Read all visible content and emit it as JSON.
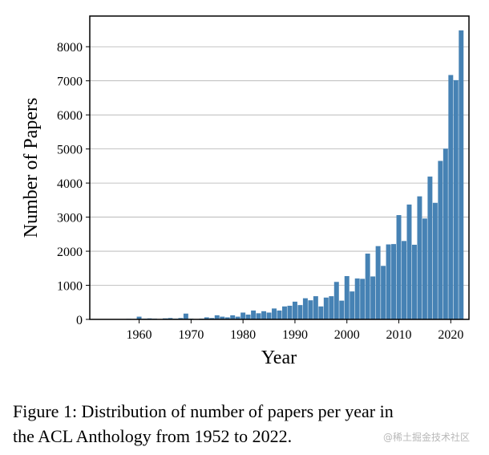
{
  "chart_data": {
    "type": "bar",
    "xlabel": "Year",
    "ylabel": "Number of Papers",
    "xlim": [
      1950.5,
      2023.5
    ],
    "ylim": [
      0,
      8900
    ],
    "yticks": [
      0,
      1000,
      2000,
      3000,
      4000,
      5000,
      6000,
      7000,
      8000
    ],
    "ytick_labels": [
      "0",
      "1000",
      "2000",
      "3000",
      "4000",
      "5000",
      "6000",
      "7000",
      "8000"
    ],
    "xticks": [
      1960,
      1970,
      1980,
      1990,
      2000,
      2010,
      2020
    ],
    "xtick_labels": [
      "1960",
      "1970",
      "1980",
      "1990",
      "2000",
      "2010",
      "2020"
    ],
    "grid": "horizontal",
    "bar_color": "#4682b4",
    "years": [
      1952,
      1953,
      1954,
      1955,
      1956,
      1957,
      1958,
      1959,
      1960,
      1961,
      1962,
      1963,
      1964,
      1965,
      1966,
      1967,
      1968,
      1969,
      1970,
      1971,
      1972,
      1973,
      1974,
      1975,
      1976,
      1977,
      1978,
      1979,
      1980,
      1981,
      1982,
      1983,
      1984,
      1985,
      1986,
      1987,
      1988,
      1989,
      1990,
      1991,
      1992,
      1993,
      1994,
      1995,
      1996,
      1997,
      1998,
      1999,
      2000,
      2001,
      2002,
      2003,
      2004,
      2005,
      2006,
      2007,
      2008,
      2009,
      2010,
      2011,
      2012,
      2013,
      2014,
      2015,
      2016,
      2017,
      2018,
      2019,
      2020,
      2021,
      2022
    ],
    "values": [
      10,
      5,
      5,
      5,
      10,
      10,
      15,
      10,
      80,
      20,
      30,
      20,
      10,
      30,
      40,
      20,
      40,
      170,
      20,
      10,
      20,
      60,
      40,
      120,
      80,
      60,
      120,
      80,
      200,
      140,
      260,
      180,
      240,
      200,
      320,
      260,
      380,
      400,
      520,
      420,
      620,
      560,
      680,
      380,
      640,
      680,
      1100,
      550,
      1270,
      820,
      1200,
      1190,
      1930,
      1260,
      2150,
      1570,
      2200,
      2210,
      3060,
      2300,
      3370,
      2190,
      3610,
      2960,
      4190,
      3420,
      4650,
      5010,
      7170,
      7020,
      8480
    ]
  },
  "caption": {
    "line1": "Figure 1: Distribution of number of papers per year in",
    "line2": "the ACL Anthology from 1952 to 2022."
  },
  "watermark": "@稀土掘金技术社区"
}
